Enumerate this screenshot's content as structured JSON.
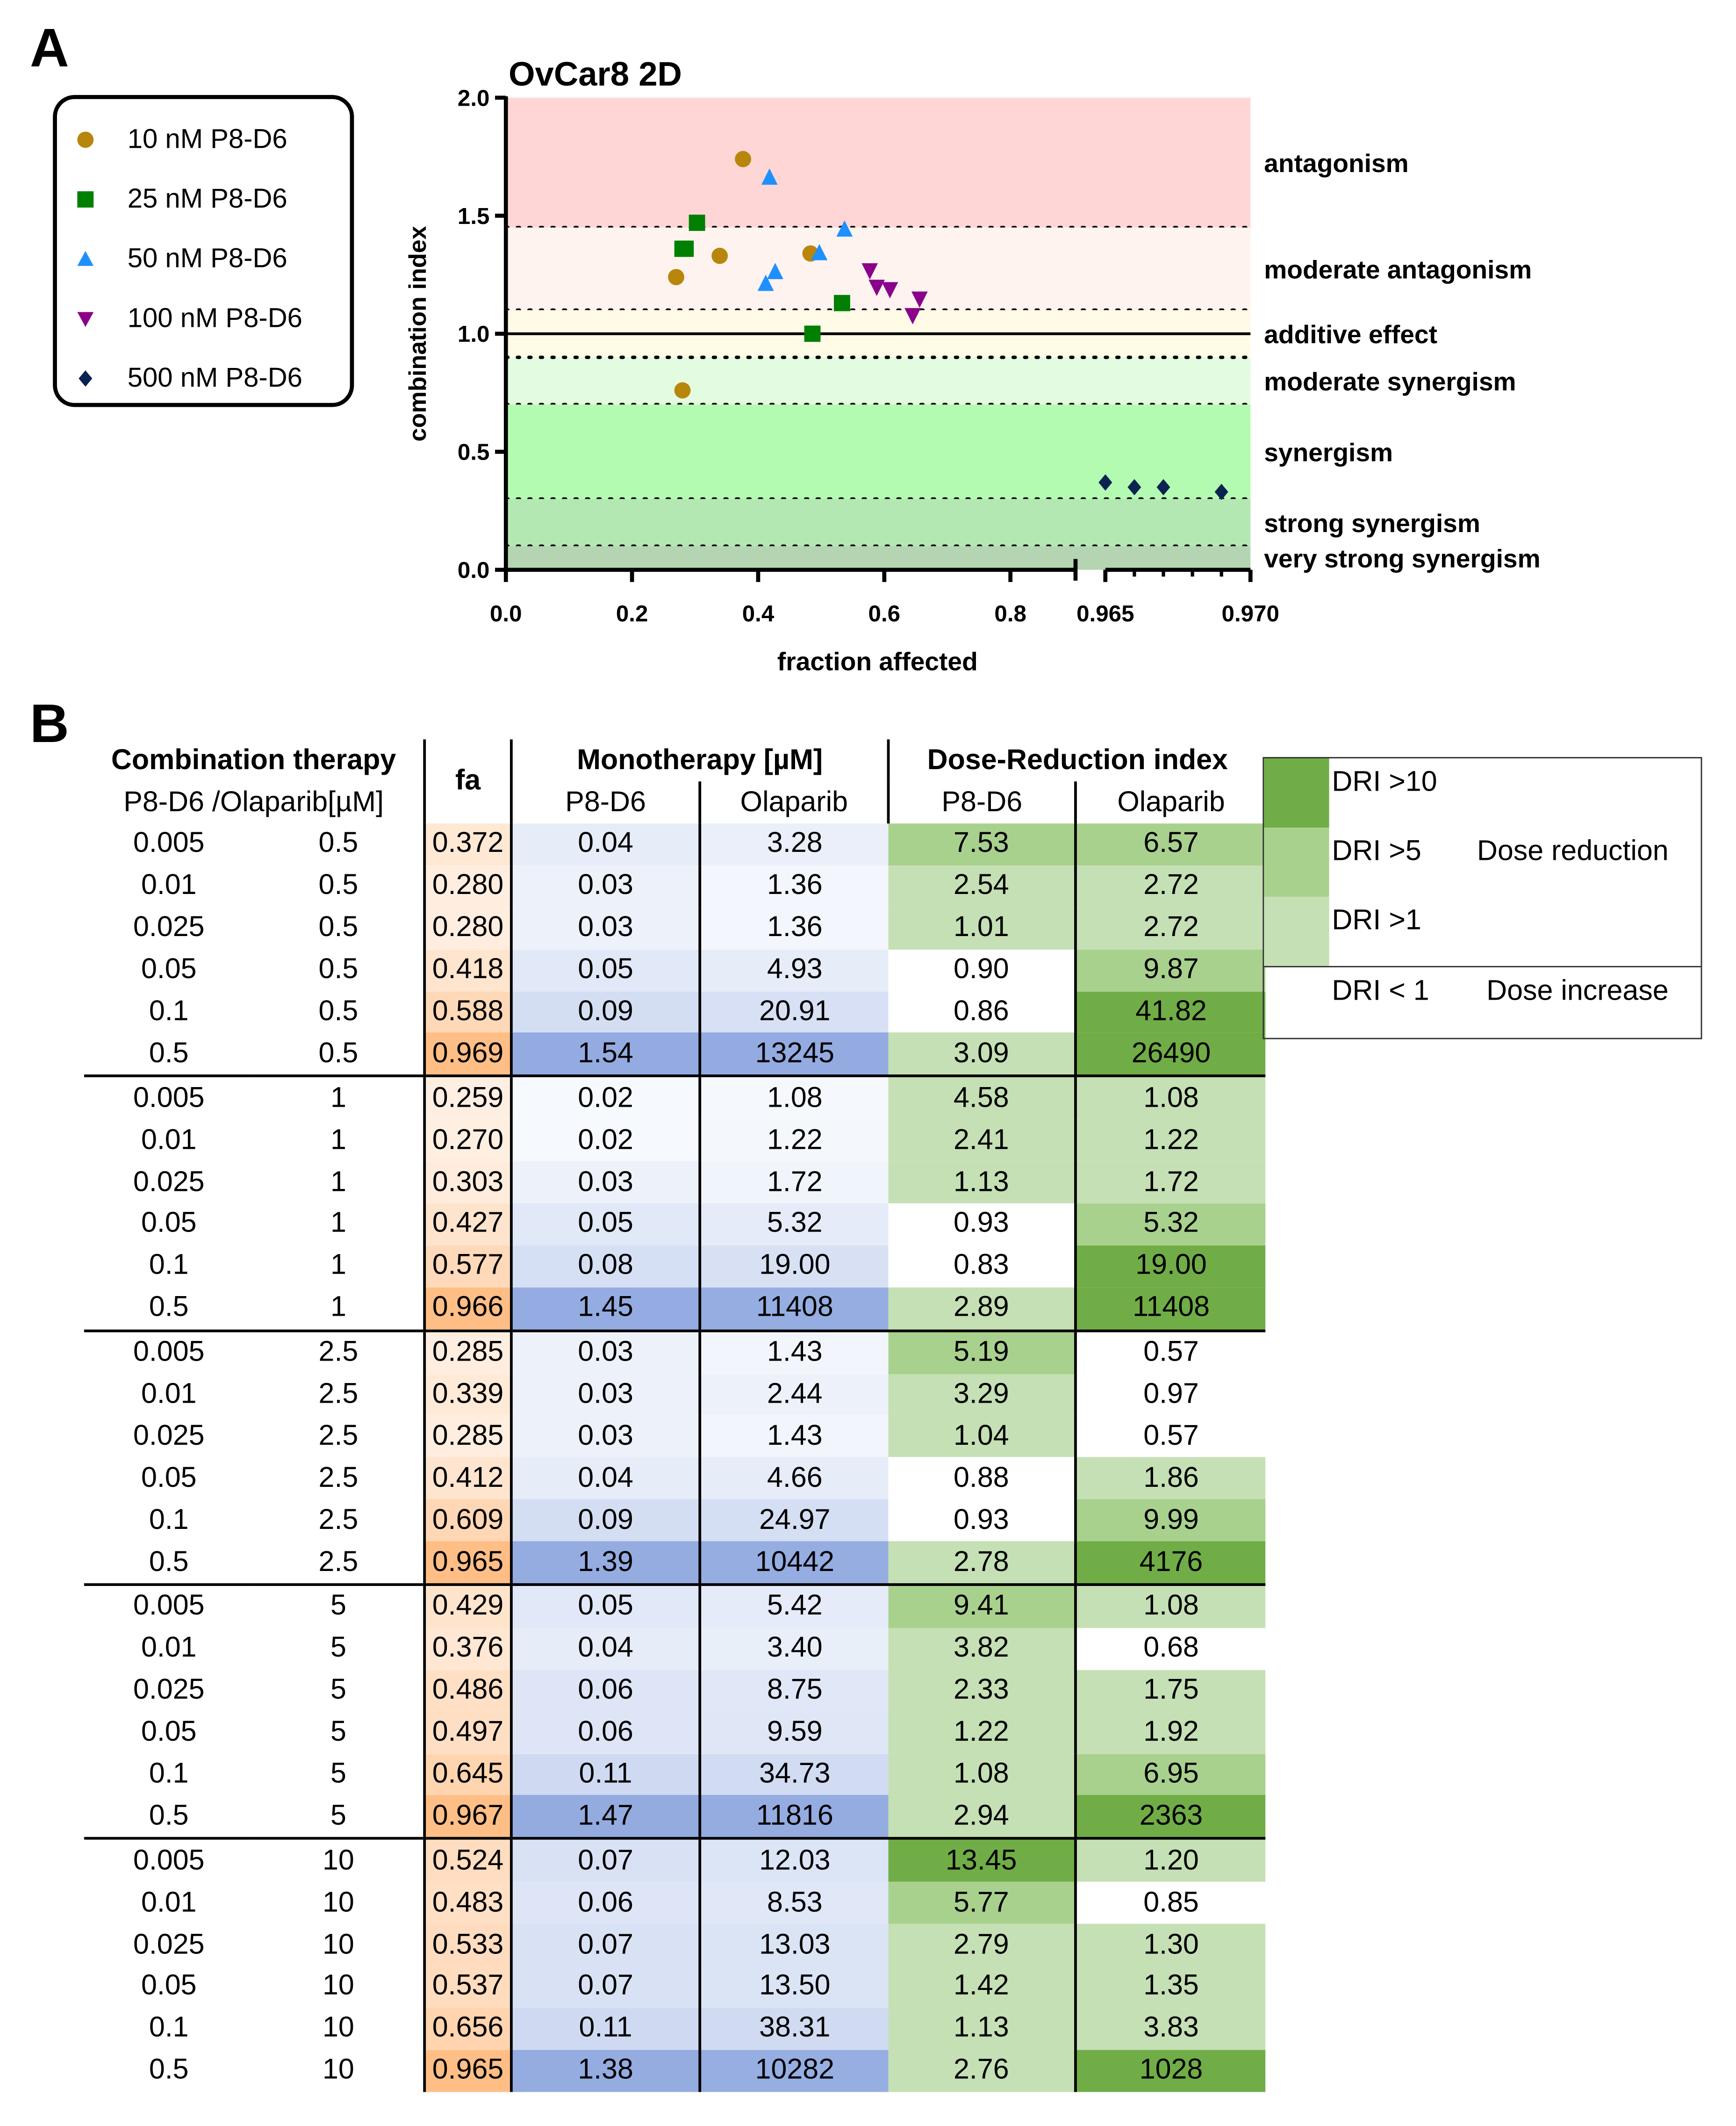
{
  "panels": {
    "a": "A",
    "b": "B"
  },
  "legend": [
    {
      "label": "10 nM P8-D6",
      "marker": "circle",
      "color": "#b8860b"
    },
    {
      "label": "25 nM P8-D6",
      "marker": "square",
      "color": "#008000"
    },
    {
      "label": "50 nM P8-D6",
      "marker": "triangle-up",
      "color": "#1e90ff"
    },
    {
      "label": "100 nM P8-D6",
      "marker": "triangle-down",
      "color": "#8b008b"
    },
    {
      "label": "500 nM P8-D6",
      "marker": "diamond",
      "color": "#0b2350"
    }
  ],
  "chart_data": {
    "type": "scatter",
    "title": "OvCar8 2D",
    "xlabel": "fraction affected",
    "ylabel": "combination index",
    "ylim": [
      0,
      2.0
    ],
    "yticks": [
      "0.0",
      "0.5",
      "1.0",
      "1.5",
      "2.0"
    ],
    "x_segments": [
      {
        "range": [
          0,
          0.9
        ],
        "ticks": [
          "0.0",
          "0.2",
          "0.4",
          "0.6",
          "0.8"
        ]
      },
      {
        "range": [
          0.965,
          0.97
        ],
        "ticks": [
          "0.965",
          "0.970"
        ]
      }
    ],
    "zones": [
      {
        "label": "antagonism",
        "from": 1.45,
        "to": 2.0,
        "color": "#ffd6d6"
      },
      {
        "label": "moderate antagonism",
        "from": 1.1,
        "to": 1.45,
        "color": "#fff3f0"
      },
      {
        "label": "additive effect",
        "from": 0.9,
        "to": 1.1,
        "color": "#fffbe6"
      },
      {
        "label": "moderate synergism",
        "from": 0.7,
        "to": 0.9,
        "color": "#e3fbe0"
      },
      {
        "label": "synergism",
        "from": 0.3,
        "to": 0.7,
        "color": "#b3fbb0"
      },
      {
        "label": "strong synergism",
        "from": 0.1,
        "to": 0.3,
        "color": "#b3e8b3"
      },
      {
        "label": "very strong synergism",
        "from": 0,
        "to": 0.1,
        "color": "#b5d5b2"
      }
    ],
    "series": [
      {
        "name": "10 nM P8-D6",
        "x": [
          0.28,
          0.27,
          0.339,
          0.376,
          0.483
        ],
        "y": [
          0.76,
          1.24,
          1.33,
          1.74,
          1.34
        ]
      },
      {
        "name": "25 nM P8-D6",
        "x": [
          0.28,
          0.303,
          0.285,
          0.486,
          0.533
        ],
        "y": [
          1.36,
          1.47,
          1.36,
          1.0,
          1.13
        ]
      },
      {
        "name": "50 nM P8-D6",
        "x": [
          0.418,
          0.427,
          0.412,
          0.497,
          0.537
        ],
        "y": [
          1.66,
          1.26,
          1.21,
          1.34,
          1.44
        ]
      },
      {
        "name": "100 nM P8-D6",
        "x": [
          0.588,
          0.577,
          0.609,
          0.645,
          0.656
        ],
        "y": [
          1.2,
          1.27,
          1.19,
          1.08,
          1.15
        ]
      },
      {
        "name": "500 nM P8-D6",
        "x": [
          0.969,
          0.966,
          0.965,
          0.967,
          0.965
        ],
        "y": [
          0.33,
          0.35,
          0.37,
          0.35,
          0.37
        ]
      }
    ]
  },
  "table": {
    "headers": {
      "combo": "Combination therapy",
      "combo_sub": "P8-D6 /Olaparib[µM]",
      "fa": "fa",
      "mono": "Monotherapy [µM]",
      "dri": "Dose-Reduction index",
      "p8": "P8-D6",
      "ola": "Olaparib"
    },
    "rows": [
      [
        "0.005",
        "0.5",
        "0.372",
        "0.04",
        "3.28",
        "7.53",
        "6.57"
      ],
      [
        "0.01",
        "0.5",
        "0.280",
        "0.03",
        "1.36",
        "2.54",
        "2.72"
      ],
      [
        "0.025",
        "0.5",
        "0.280",
        "0.03",
        "1.36",
        "1.01",
        "2.72"
      ],
      [
        "0.05",
        "0.5",
        "0.418",
        "0.05",
        "4.93",
        "0.90",
        "9.87"
      ],
      [
        "0.1",
        "0.5",
        "0.588",
        "0.09",
        "20.91",
        "0.86",
        "41.82"
      ],
      [
        "0.5",
        "0.5",
        "0.969",
        "1.54",
        "13245",
        "3.09",
        "26490"
      ],
      [
        "0.005",
        "1",
        "0.259",
        "0.02",
        "1.08",
        "4.58",
        "1.08"
      ],
      [
        "0.01",
        "1",
        "0.270",
        "0.02",
        "1.22",
        "2.41",
        "1.22"
      ],
      [
        "0.025",
        "1",
        "0.303",
        "0.03",
        "1.72",
        "1.13",
        "1.72"
      ],
      [
        "0.05",
        "1",
        "0.427",
        "0.05",
        "5.32",
        "0.93",
        "5.32"
      ],
      [
        "0.1",
        "1",
        "0.577",
        "0.08",
        "19.00",
        "0.83",
        "19.00"
      ],
      [
        "0.5",
        "1",
        "0.966",
        "1.45",
        "11408",
        "2.89",
        "11408"
      ],
      [
        "0.005",
        "2.5",
        "0.285",
        "0.03",
        "1.43",
        "5.19",
        "0.57"
      ],
      [
        "0.01",
        "2.5",
        "0.339",
        "0.03",
        "2.44",
        "3.29",
        "0.97"
      ],
      [
        "0.025",
        "2.5",
        "0.285",
        "0.03",
        "1.43",
        "1.04",
        "0.57"
      ],
      [
        "0.05",
        "2.5",
        "0.412",
        "0.04",
        "4.66",
        "0.88",
        "1.86"
      ],
      [
        "0.1",
        "2.5",
        "0.609",
        "0.09",
        "24.97",
        "0.93",
        "9.99"
      ],
      [
        "0.5",
        "2.5",
        "0.965",
        "1.39",
        "10442",
        "2.78",
        "4176"
      ],
      [
        "0.005",
        "5",
        "0.429",
        "0.05",
        "5.42",
        "9.41",
        "1.08"
      ],
      [
        "0.01",
        "5",
        "0.376",
        "0.04",
        "3.40",
        "3.82",
        "0.68"
      ],
      [
        "0.025",
        "5",
        "0.486",
        "0.06",
        "8.75",
        "2.33",
        "1.75"
      ],
      [
        "0.05",
        "5",
        "0.497",
        "0.06",
        "9.59",
        "1.22",
        "1.92"
      ],
      [
        "0.1",
        "5",
        "0.645",
        "0.11",
        "34.73",
        "1.08",
        "6.95"
      ],
      [
        "0.5",
        "5",
        "0.967",
        "1.47",
        "11816",
        "2.94",
        "2363"
      ],
      [
        "0.005",
        "10",
        "0.524",
        "0.07",
        "12.03",
        "13.45",
        "1.20"
      ],
      [
        "0.01",
        "10",
        "0.483",
        "0.06",
        "8.53",
        "5.77",
        "0.85"
      ],
      [
        "0.025",
        "10",
        "0.533",
        "0.07",
        "13.03",
        "2.79",
        "1.30"
      ],
      [
        "0.05",
        "10",
        "0.537",
        "0.07",
        "13.50",
        "1.42",
        "1.35"
      ],
      [
        "0.1",
        "10",
        "0.656",
        "0.11",
        "38.31",
        "1.13",
        "3.83"
      ],
      [
        "0.5",
        "10",
        "0.965",
        "1.38",
        "10282",
        "2.76",
        "1028"
      ]
    ]
  },
  "dri_legend": {
    "gt10": "DRI >10",
    "gt5": "DRI >5",
    "gt1": "DRI >1",
    "lt1": "DRI < 1",
    "reduction": "Dose reduction",
    "increase": "Dose increase",
    "colors": {
      "gt10": "#70ad47",
      "gt5": "#a9d18e",
      "gt1": "#c5e0b4",
      "lt1": "#ffffff"
    }
  }
}
